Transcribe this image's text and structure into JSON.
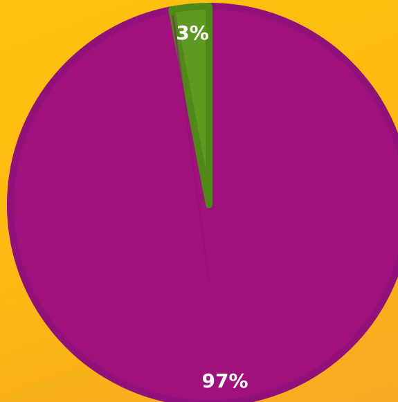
{
  "chart_data": {
    "type": "pie",
    "slices": [
      {
        "value": 97,
        "label": "97%",
        "color": "#a0117e",
        "border": "#92107a"
      },
      {
        "value": 3,
        "label": "3%",
        "color": "#5e9a22",
        "border": "#4f8a19"
      }
    ],
    "background": "#fdb913",
    "legend": "none"
  }
}
